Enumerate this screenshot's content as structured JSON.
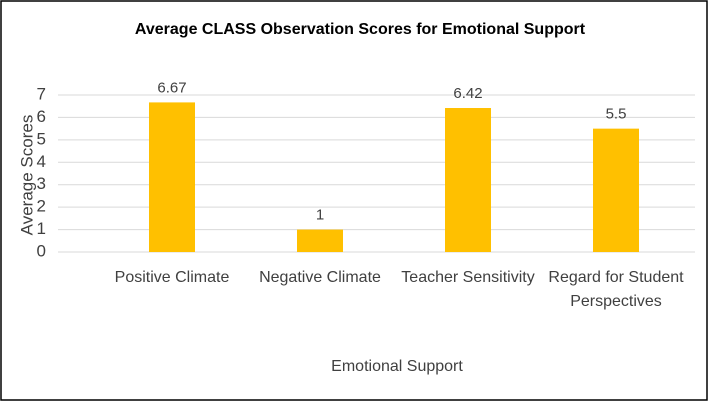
{
  "chart_data": {
    "type": "bar",
    "title": "Average CLASS Observation Scores for Emotional Support",
    "categories": [
      "Positive Climate",
      "Negative Climate",
      "Teacher Sensitivity",
      "Regard for Student Perspectives"
    ],
    "values": [
      6.67,
      1,
      6.42,
      5.5
    ],
    "color": "#ffc000",
    "x_label": "Emotional Support",
    "y_label": "Average Scores",
    "ylim": [
      0,
      7
    ],
    "yticks": [
      0,
      1,
      2,
      3,
      4,
      5,
      6,
      7
    ],
    "grid": true
  }
}
